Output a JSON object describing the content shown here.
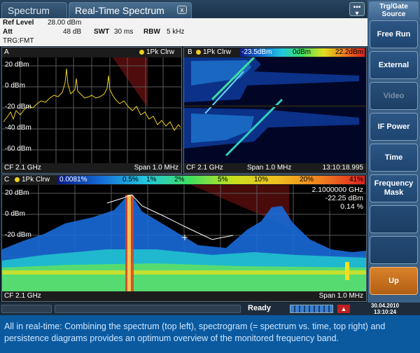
{
  "tabs": [
    {
      "label": "Spectrum"
    },
    {
      "label": "Real-Time Spectrum"
    }
  ],
  "tab_close": "x",
  "info": {
    "ref_level_label": "Ref Level",
    "ref_level_value": "28.00 dBm",
    "att_label": "Att",
    "att_value": "48 dB",
    "swt_label": "SWT",
    "swt_value": "30 ms",
    "rbw_label": "RBW",
    "rbw_value": "5 kHz",
    "trigger": "TRG:FMT"
  },
  "diagram_a": {
    "id": "A",
    "trace": "1Pk Clrw",
    "y_ticks": [
      "20 dBm",
      "0 dBm",
      "-20 dBm",
      "-40 dBm",
      "-60 dBm"
    ],
    "cf": "CF 2.1 GHz",
    "span": "Span 1.0 MHz"
  },
  "diagram_b": {
    "id": "B",
    "trace": "1Pk Clrw",
    "scale_min": "-23.5dBm",
    "scale_mid": "0dBm",
    "scale_max": "22.2dBm",
    "cf": "CF 2.1 GHz",
    "span": "Span 1.0 MHz",
    "time": "13:10:18.995"
  },
  "diagram_c": {
    "id": "C",
    "trace": "1Pk Clrw",
    "scale_labels": [
      "0.0081%",
      "0.5%",
      "1%",
      "2%",
      "5%",
      "10%",
      "20%",
      "41%"
    ],
    "y_ticks": [
      "20 dBm",
      "0 dBm",
      "-20 dBm"
    ],
    "marker_freq": "2.1000000 GHz",
    "marker_level": "-22.25 dBm",
    "marker_pct": "0.14 %",
    "cf": "CF 2.1 GHz",
    "span": "Span 1.0 MHz"
  },
  "softkeys": {
    "header": "Trg/Gate Source",
    "items": [
      {
        "label": "Free Run"
      },
      {
        "label": "External"
      },
      {
        "label": "Video"
      },
      {
        "label": "IF Power"
      },
      {
        "label": "Time"
      },
      {
        "label": "Frequency Mask"
      },
      {
        "label": ""
      },
      {
        "label": ""
      },
      {
        "label": "Up"
      }
    ]
  },
  "status": {
    "ready": "Ready",
    "date": "30.04.2010",
    "time": "13:10:24"
  },
  "caption": "All in real-time: Combining the spectrum (top left), spectrogram (= spectrum vs. time, top right) and persistence diagrams provides an optimum overview of the monitored frequency band.",
  "colors": {
    "trace": "#f0d020",
    "softkey_selected": "#d8822a",
    "caption_bg": "#0b5aa0"
  }
}
